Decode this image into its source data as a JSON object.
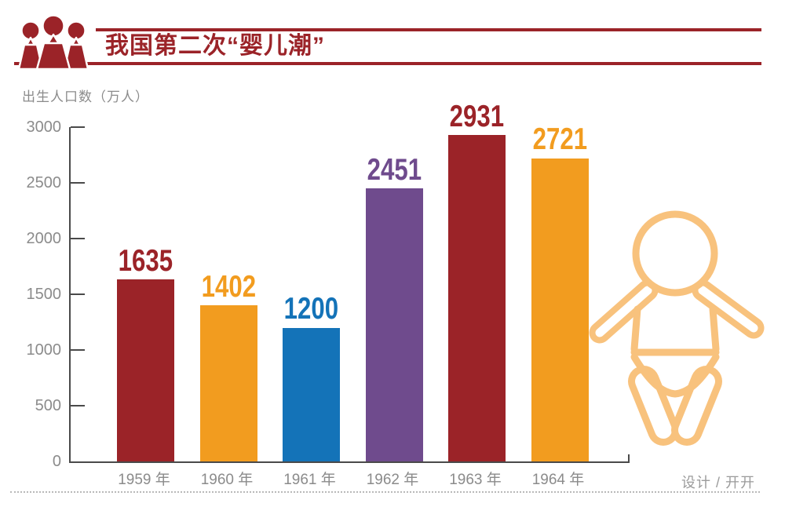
{
  "header": {
    "title": "我国第二次“婴儿潮”"
  },
  "chart_data": {
    "type": "bar",
    "title": "我国第二次“婴儿潮”",
    "ylabel": "出生人口数（万人）",
    "xlabel": "",
    "categories": [
      "1959 年",
      "1960 年",
      "1961 年",
      "1962 年",
      "1963 年",
      "1964 年"
    ],
    "values": [
      1635,
      1402,
      1200,
      2451,
      2931,
      2721
    ],
    "bar_colors": [
      "#9B2328",
      "#F29C1F",
      "#1473B8",
      "#6F4B8D",
      "#9B2328",
      "#F29C1F"
    ],
    "ylim": [
      0,
      3000
    ],
    "yticks": [
      0,
      500,
      1000,
      1500,
      2000,
      2500,
      3000
    ],
    "grid": false,
    "legend": null,
    "value_labels_shown": true
  },
  "footer": {
    "credit": "设计 / 开开"
  },
  "colors": {
    "accent_dark_red": "#9B2328",
    "orange": "#F29C1F",
    "blue": "#1473B8",
    "purple": "#6F4B8D",
    "baby_outline": "#F8C27D",
    "axis": "#4A4A4A",
    "label_gray": "#8B8B8B"
  },
  "icons": {
    "header_icon": "people-group-icon",
    "decoration_icon": "baby-icon"
  }
}
